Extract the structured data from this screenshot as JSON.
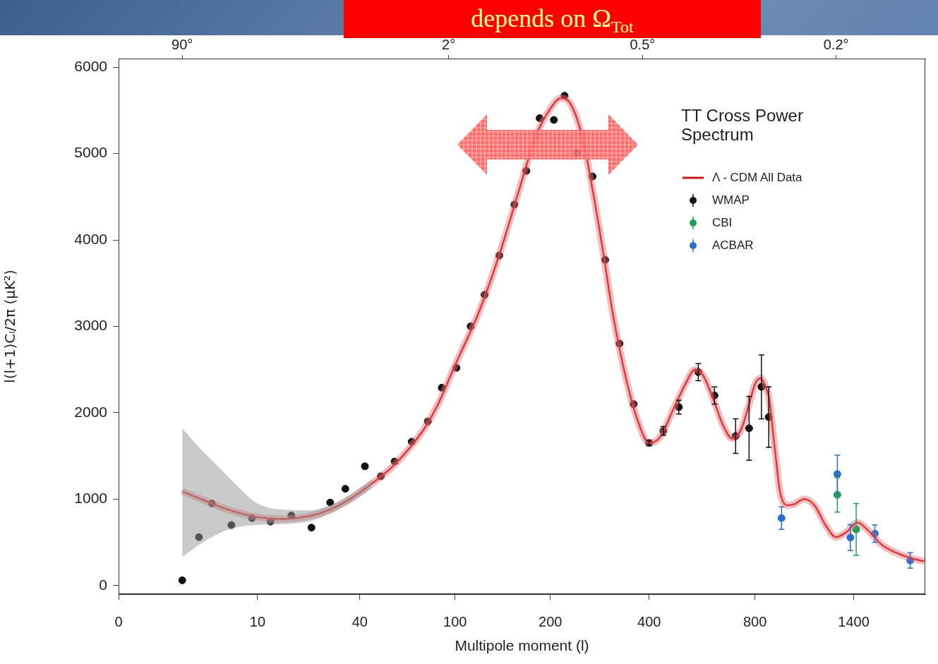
{
  "chart_data": {
    "type": "scatter",
    "title": "TT Cross Power Spectrum",
    "annotations": [
      {
        "text": "depends on Ω",
        "subscript": "Tot"
      }
    ],
    "x_label": "Multipole moment (l)",
    "y_label": "l(l+1)Cₗ/2π (μK²)",
    "xlim": [
      0,
      2100
    ],
    "xticks": [
      0,
      10,
      40,
      100,
      200,
      400,
      800,
      1400
    ],
    "x2lim": [
      0,
      2100
    ],
    "x2ticks": [
      {
        "value": 2,
        "label": "90°"
      },
      {
        "value": 94,
        "label": "2°"
      },
      {
        "value": 382,
        "label": "0.5°"
      },
      {
        "value": 1267,
        "label": "0.2°"
      }
    ],
    "ylim": [
      -100,
      6100
    ],
    "yticks": [
      0,
      1000,
      2000,
      3000,
      4000,
      5000,
      6000
    ],
    "grid": false,
    "legend": "upper right",
    "series": [
      {
        "name": "Λ - CDM All Data",
        "type": "line",
        "color": "#c8141e",
        "x": [
          2,
          3,
          4,
          5,
          7,
          10,
          14,
          20,
          27,
          35,
          45,
          55,
          65,
          75,
          85,
          100,
          120,
          140,
          160,
          180,
          200,
          215,
          230,
          250,
          270,
          290,
          310,
          340,
          370,
          400,
          430,
          470,
          510,
          540,
          570,
          610,
          650,
          690,
          730,
          770,
          800,
          826,
          850,
          868,
          885,
          902,
          921,
          958,
          997,
          1058,
          1124,
          1193,
          1267,
          1345,
          1428,
          1517,
          1643,
          1779,
          1928,
          2088
        ],
        "values": [
          1090,
          1010,
          950,
          900,
          840,
          790,
          770,
          800,
          880,
          1000,
          1180,
          1380,
          1600,
          1830,
          2100,
          2550,
          3200,
          3900,
          4600,
          5200,
          5520,
          5640,
          5580,
          5200,
          4550,
          3850,
          3150,
          2400,
          1900,
          1650,
          1720,
          2050,
          2350,
          2500,
          2430,
          2150,
          1850,
          1700,
          1800,
          2100,
          2330,
          2400,
          2300,
          2150,
          1800,
          1450,
          1100,
          930,
          940,
          1000,
          920,
          700,
          560,
          620,
          730,
          640,
          470,
          380,
          320,
          280
        ],
        "lower": [
          330,
          470,
          560,
          620,
          680,
          700,
          710,
          740,
          830,
          950,
          1130,
          null,
          null,
          null,
          null,
          null,
          null,
          null,
          null,
          null,
          null,
          null,
          null,
          null,
          null,
          null,
          null,
          null,
          null,
          null,
          null,
          null,
          null,
          null,
          null,
          null,
          null,
          null,
          null,
          null,
          null,
          null,
          null,
          null,
          null,
          null,
          null,
          null,
          null,
          null,
          null,
          null,
          null,
          null,
          null,
          null,
          null,
          null,
          null,
          null
        ],
        "upper": [
          1820,
          1600,
          1450,
          1330,
          1130,
          950,
          880,
          870,
          930,
          1050,
          1230,
          null,
          null,
          null,
          null,
          null,
          null,
          null,
          null,
          null,
          null,
          null,
          null,
          null,
          null,
          null,
          null,
          null,
          null,
          null,
          null,
          null,
          null,
          null,
          null,
          null,
          null,
          null,
          null,
          null,
          null,
          null,
          null,
          null,
          null,
          null,
          null,
          null,
          null,
          null,
          null,
          null,
          null,
          null,
          null,
          null,
          null,
          null,
          null,
          null
        ]
      },
      {
        "name": "WMAP",
        "type": "scatter",
        "color": "#111111",
        "marker": "circle",
        "x": [
          2,
          3,
          4,
          6,
          9,
          12,
          16,
          21,
          27,
          33,
          42,
          49,
          56,
          66,
          77,
          88,
          101,
          112,
          124,
          138,
          154,
          168,
          185,
          205,
          221,
          241,
          269,
          294,
          325,
          359,
          400,
          439,
          486,
          552,
          614,
          705,
          770,
          830,
          865
        ],
        "values": [
          60,
          560,
          950,
          700,
          780,
          740,
          810,
          670,
          960,
          1120,
          1380,
          1265,
          1435,
          1665,
          1900,
          2290,
          2520,
          3000,
          3365,
          3820,
          4410,
          4800,
          5410,
          5390,
          5670,
          5010,
          4735,
          3770,
          2800,
          2100,
          1650,
          1790,
          2065,
          2470,
          2200,
          1730,
          1820,
          2300,
          1950
        ],
        "errors": [
          null,
          null,
          null,
          null,
          null,
          null,
          null,
          null,
          null,
          null,
          null,
          null,
          null,
          null,
          null,
          null,
          null,
          null,
          null,
          null,
          null,
          null,
          null,
          null,
          null,
          null,
          null,
          null,
          null,
          null,
          30,
          50,
          80,
          100,
          100,
          200,
          370,
          370,
          350
        ]
      },
      {
        "name": "CBI",
        "type": "scatter",
        "color": "#1f9e57",
        "marker": "circle",
        "x": [
          1276,
          1420
        ],
        "values": [
          1050,
          650
        ],
        "errors": [
          200,
          300
        ]
      },
      {
        "name": "ACBAR",
        "type": "scatter",
        "color": "#2a6fc9",
        "marker": "circle",
        "x": [
          930,
          1276,
          1374,
          1578,
          1928
        ],
        "values": [
          780,
          1290,
          555,
          600,
          290
        ],
        "errors": [
          130,
          220,
          150,
          100,
          90
        ]
      }
    ]
  }
}
